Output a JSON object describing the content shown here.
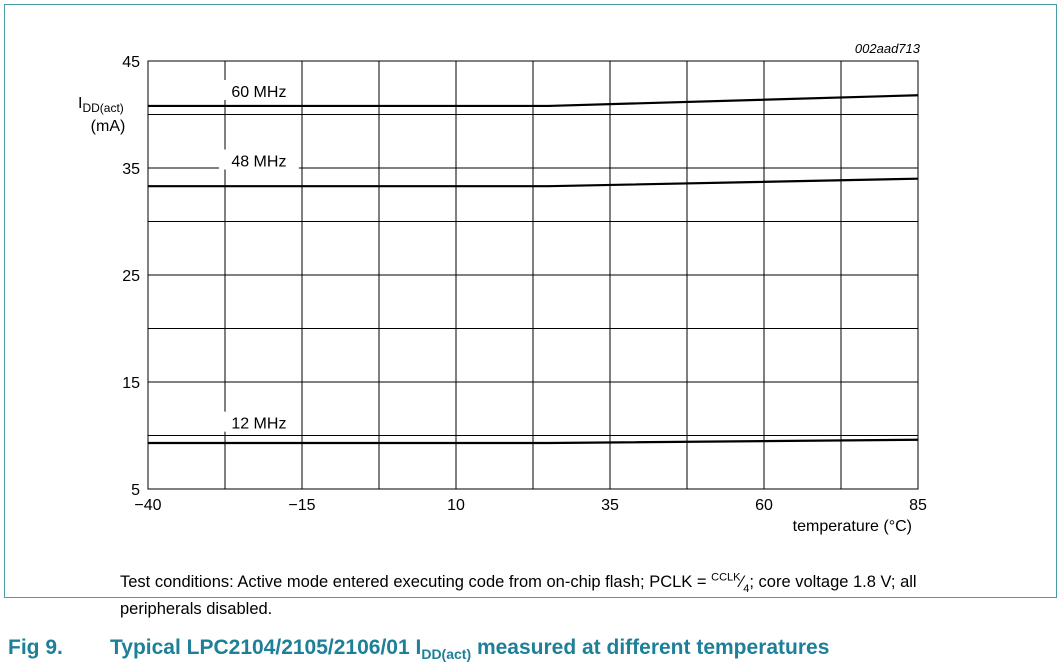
{
  "chart_data": {
    "type": "line",
    "figure_id": "002aad713",
    "ylabel_main": "I",
    "ylabel_sub": "DD(act)",
    "ylabel_unit": "(mA)",
    "xlabel": "temperature (°C)",
    "xlim": [
      -40,
      85
    ],
    "ylim": [
      5,
      45
    ],
    "x_ticks": [
      -40,
      -15,
      10,
      35,
      60,
      85
    ],
    "x_tick_labels": [
      "−40",
      "−15",
      "10",
      "35",
      "60",
      "85"
    ],
    "y_ticks": [
      5,
      15,
      25,
      35,
      45
    ],
    "y_tick_labels": [
      "5",
      "15",
      "25",
      "35",
      "45"
    ],
    "grid_x_step": 12.5,
    "grid_y_step": 5,
    "grid": true,
    "series": [
      {
        "name": "60 MHz",
        "x": [
          -40,
          25,
          85
        ],
        "y": [
          40.8,
          40.8,
          41.8
        ],
        "label_x": -22,
        "label_y": 42.2
      },
      {
        "name": "48 MHz",
        "x": [
          -40,
          25,
          85
        ],
        "y": [
          33.3,
          33.3,
          34.0
        ],
        "label_x": -22,
        "label_y": 35.7
      },
      {
        "name": "12 MHz",
        "x": [
          -40,
          25,
          85
        ],
        "y": [
          9.3,
          9.3,
          9.6
        ],
        "label_x": -22,
        "label_y": 11.2
      }
    ]
  },
  "conditions": {
    "text_before": "Test conditions: Active mode entered executing code from on-chip flash; PCLK = ",
    "pclk_num": "CCLK",
    "pclk_sep": "⁄",
    "pclk_den": "4",
    "text_after": "; core voltage 1.8 V; all peripherals disabled."
  },
  "caption": {
    "number": "Fig 9.",
    "text_before": "Typical LPC2104/2105/2106/01 I",
    "subscript": "DD(act)",
    "text_after": " measured at different temperatures"
  }
}
